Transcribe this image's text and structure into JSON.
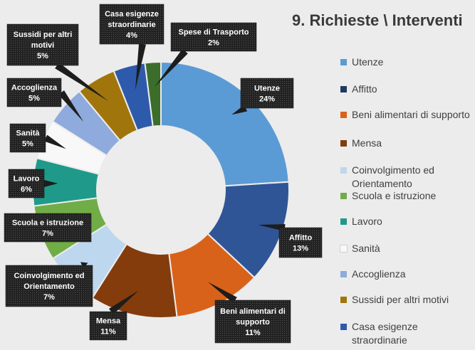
{
  "chart_data": {
    "type": "pie",
    "title": "9. Richieste \\ Interventi",
    "legend_position": "right",
    "slices": [
      {
        "name": "Utenze",
        "value": 24,
        "label": "24%",
        "color": "#5b9bd5"
      },
      {
        "name": "Affitto",
        "value": 13,
        "label": "13%",
        "color": "#2f5597"
      },
      {
        "name": "Beni alimentari di supporto",
        "value": 11,
        "label": "11%",
        "color": "#d9621a"
      },
      {
        "name": "Mensa",
        "value": 11,
        "label": "11%",
        "color": "#843c0c"
      },
      {
        "name": "Coinvolgimento ed Orientamento",
        "value": 7,
        "label": "7%",
        "color": "#bdd7ee"
      },
      {
        "name": "Scuola e istruzione",
        "value": 7,
        "label": "7%",
        "color": "#70ad47"
      },
      {
        "name": "Lavoro",
        "value": 6,
        "label": "6%",
        "color": "#1f9a8a"
      },
      {
        "name": "Sanità",
        "value": 5,
        "label": "5%",
        "color": "#f8f8f8"
      },
      {
        "name": "Accoglienza",
        "value": 5,
        "label": "5%",
        "color": "#8faadc"
      },
      {
        "name": "Sussidi per altri motivi",
        "value": 5,
        "label": "5%",
        "color": "#a0760c"
      },
      {
        "name": "Casa esigenze straordinarie",
        "value": 4,
        "label": "4%",
        "color": "#2e5aac"
      },
      {
        "name": "Spese di Trasporto",
        "value": 2,
        "label": "2%",
        "color": "#3c6e2b"
      }
    ],
    "legend": [
      {
        "label": "Utenze",
        "color": "#5b9bd5"
      },
      {
        "label": "Affitto",
        "color": "#203864"
      },
      {
        "label": "Beni alimentari di supporto",
        "color": "#d9621a"
      },
      {
        "label": "Mensa",
        "color": "#843c0c"
      },
      {
        "label": "Coinvolgimento ed Orientamento",
        "color": "#bdd7ee"
      },
      {
        "label": "Scuola e istruzione",
        "color": "#70ad47"
      },
      {
        "label": "Lavoro",
        "color": "#1f9a8a"
      },
      {
        "label": "Sanità",
        "color": "#f8f8f8"
      },
      {
        "label": "Accoglienza",
        "color": "#8faadc"
      },
      {
        "label": "Sussidi per altri motivi",
        "color": "#a0760c"
      },
      {
        "label": "Casa esigenze straordinarie",
        "color": "#2e5aac"
      }
    ],
    "callouts": [
      {
        "lines": [
          "Utenze",
          "24%"
        ]
      },
      {
        "lines": [
          "Affitto",
          "13%"
        ]
      },
      {
        "lines": [
          "Beni alimentari di",
          "supporto",
          "11%"
        ]
      },
      {
        "lines": [
          "Mensa",
          "11%"
        ]
      },
      {
        "lines": [
          "Coinvolgimento ed",
          "Orientamento",
          "7%"
        ]
      },
      {
        "lines": [
          "Scuola e istruzione",
          "7%"
        ]
      },
      {
        "lines": [
          "Lavoro",
          "6%"
        ]
      },
      {
        "lines": [
          "Sanità",
          "5%"
        ]
      },
      {
        "lines": [
          "Accoglienza",
          "5%"
        ]
      },
      {
        "lines": [
          "Sussidi per altri",
          "motivi",
          "5%"
        ]
      },
      {
        "lines": [
          "Casa esigenze",
          "straordinarie",
          "4%"
        ]
      },
      {
        "lines": [
          "Spese di Trasporto",
          "2%"
        ]
      }
    ]
  }
}
